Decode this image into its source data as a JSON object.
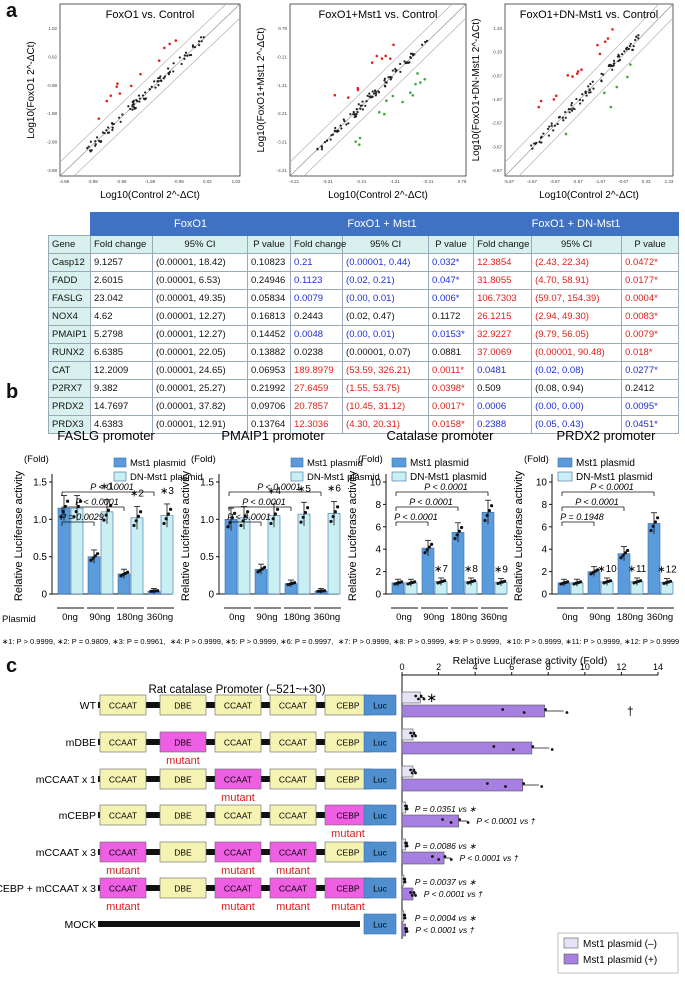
{
  "panel_labels": {
    "a": "a",
    "b": "b",
    "c": "c"
  },
  "scatter": [
    {
      "title": "FoxO1 vs. Control",
      "ylabel": "Log10(FoxO1 2^-ΔCt)",
      "xlabel": "Log10(Control 2^-ΔCt)",
      "xticks": [
        "-4.98",
        "-3.98",
        "-2.98",
        "-1.98",
        "-0.98",
        "0.02",
        "1.02"
      ],
      "yticks": [
        "1.02",
        "0.02",
        "-0.98",
        "-1.98",
        "-2.98",
        "-3.98"
      ]
    },
    {
      "title": "FoxO1+Mst1 vs. Control",
      "ylabel": "Log10(FoxO1+Mst1 2^-ΔCt)",
      "xlabel": "Log10(Control 2^-ΔCt)",
      "xticks": [
        "-4.21",
        "-3.21",
        "-2.21",
        "-1.21",
        "-0.21",
        "0.79"
      ],
      "yticks": [
        "0.79",
        "-0.21",
        "-1.21",
        "-2.21",
        "-3.21",
        "-4.21"
      ]
    },
    {
      "title": "FoxO1+DN-Mst1 vs. Control",
      "ylabel": "Log10(FoxO1+DN-Mst1 2^-ΔCt)",
      "xlabel": "Log10(Control 2^-ΔCt)",
      "xticks": [
        "-5.67",
        "-4.67",
        "-3.67",
        "-2.67",
        "-1.67",
        "-0.67",
        "0.33",
        "1.33"
      ],
      "yticks": [
        "1.33",
        "0.33",
        "-0.67",
        "-1.67",
        "-2.67",
        "-3.67",
        "-4.67"
      ]
    }
  ],
  "table": {
    "groups": [
      "FoxO1",
      "FoxO1 + Mst1",
      "FoxO1 + DN-Mst1"
    ],
    "headers": [
      "Gene",
      "Fold change",
      "95% CI",
      "P value",
      "Fold change",
      "95% CI",
      "P value",
      "Fold change",
      "95% CI",
      "P value"
    ],
    "rows": [
      [
        "Casp12",
        "9.1257",
        "(0.00001, 18.42)",
        "0.10823",
        "0.21",
        "(0.00001, 0.44)",
        "0.032*",
        "12.3854",
        "(2.43, 22.34)",
        "0.0472*"
      ],
      [
        "FADD",
        "2.6015",
        "(0.00001, 6.53)",
        "0.24946",
        "0.1123",
        "(0.02, 0.21)",
        "0.047*",
        "31.8055",
        "(4.70, 58.91)",
        "0.0177*"
      ],
      [
        "FASLG",
        "23.042",
        "(0.00001, 49.35)",
        "0.05834",
        "0.0079",
        "(0.00, 0.01)",
        "0.006*",
        "106.7303",
        "(59.07, 154.39)",
        "0.0004*"
      ],
      [
        "NOX4",
        "4.62",
        "(0.00001, 12.27)",
        "0.16813",
        "0.2443",
        "(0.02, 0.47)",
        "0.1172",
        "26.1215",
        "(2.94, 49.30)",
        "0.0083*"
      ],
      [
        "PMAIP1",
        "5.2798",
        "(0.00001, 12.27)",
        "0.14452",
        "0.0048",
        "(0.00, 0.01)",
        "0.0153*",
        "32.9227",
        "(9.79, 56.05)",
        "0.0079*"
      ],
      [
        "RUNX2",
        "6.6385",
        "(0.00001, 22.05)",
        "0.13882",
        "0.0238",
        "(0.00001, 0.07)",
        "0.0881",
        "37.0069",
        "(0.00001, 90.48)",
        "0.018*"
      ],
      [
        "CAT",
        "12.2009",
        "(0.00001, 24.65)",
        "0.06953",
        "189.8979",
        "(53.59, 326.21)",
        "0.0011*",
        "0.0481",
        "(0.02, 0.08)",
        "0.0277*"
      ],
      [
        "P2RX7",
        "9.382",
        "(0.00001, 25.27)",
        "0.21992",
        "27.6459",
        "(1.55, 53.75)",
        "0.0398*",
        "0.509",
        "(0.08, 0.94)",
        "0.2412"
      ],
      [
        "PRDX2",
        "14.7697",
        "(0.00001, 37.82)",
        "0.09706",
        "20.7857",
        "(10.45, 31.12)",
        "0.0017*",
        "0.0006",
        "(0.00, 0.00)",
        "0.0095*"
      ],
      [
        "PRDX3",
        "4.6383",
        "(0.00001, 12.91)",
        "0.13764",
        "12.3036",
        "(4.30, 20.31)",
        "0.0158*",
        "0.2388",
        "(0.05, 0.43)",
        "0.0451*"
      ]
    ]
  },
  "colors": {
    "mst1": "#5a9bdc",
    "dn": "#c9eff2",
    "neg": "#e4e4f6",
    "pos": "#a77fe0",
    "up": "#e0201a",
    "down": "#1f2fd6",
    "header": "#3f72c2"
  },
  "panel_b": {
    "ylabel": "Relative Luciferase activity",
    "fold": "(Fold)",
    "plasmid_label": "Plasmid",
    "doses": [
      "0ng",
      "90ng",
      "180ng",
      "360ng"
    ],
    "legend": [
      "Mst1 plasmid",
      "DN-Mst1 plasmid"
    ],
    "footnotes": [
      "∗1: P > 0.9999, ∗2: P = 0.9809, ∗3: P = 0.9961,",
      "∗4: P > 0.9999, ∗5: P > 0.9999, ∗6: P = 0.9997,",
      "∗7: P > 0.9999, ∗8: P > 0.9999, ∗9: P > 0.9999,",
      "∗10: P > 0.9999, ∗11: P > 0.9999, ∗12: P > 0.9999"
    ]
  },
  "chart_data": [
    {
      "type": "bar",
      "title": "FASLG promoter",
      "categories": [
        "0ng",
        "90ng",
        "180ng",
        "360ng"
      ],
      "ylim": [
        0,
        1.5
      ],
      "yticks": [
        "0",
        "0.5",
        "1.0",
        "1.5"
      ],
      "series": [
        {
          "name": "Mst1 plasmid",
          "values": [
            1.15,
            0.5,
            0.27,
            0.04
          ]
        },
        {
          "name": "DN-Mst1 plasmid",
          "values": [
            1.15,
            1.1,
            1.02,
            1.05
          ]
        }
      ],
      "stars": [
        "∗1",
        "∗2",
        "∗3"
      ],
      "pvals": [
        "P < 0.0001",
        "P < 0.0001",
        "P = 0.0029"
      ]
    },
    {
      "type": "bar",
      "title": "PMAIP1 promoter",
      "categories": [
        "0ng",
        "90ng",
        "180ng",
        "360ng"
      ],
      "ylim": [
        0,
        1.5
      ],
      "yticks": [
        "0",
        "0.5",
        "1.0",
        "1.5"
      ],
      "series": [
        {
          "name": "Mst1 plasmid",
          "values": [
            1.0,
            0.33,
            0.14,
            0.04
          ]
        },
        {
          "name": "DN-Mst1 plasmid",
          "values": [
            1.02,
            1.05,
            1.07,
            1.08
          ]
        }
      ],
      "stars": [
        "∗4",
        "∗5",
        "∗6"
      ],
      "pvals": [
        "P < 0.0001",
        "P < 0.0001",
        "P < 0.0001"
      ]
    },
    {
      "type": "bar",
      "title": "Catalase promoter",
      "categories": [
        "0ng",
        "90ng",
        "180ng",
        "360ng"
      ],
      "ylim": [
        0,
        10
      ],
      "yticks": [
        "0",
        "2",
        "4",
        "6",
        "8",
        "10"
      ],
      "series": [
        {
          "name": "Mst1 plasmid",
          "values": [
            1.0,
            4.1,
            5.5,
            7.3
          ]
        },
        {
          "name": "DN-Mst1 plasmid",
          "values": [
            1.0,
            1.1,
            1.1,
            1.05
          ]
        }
      ],
      "stars": [
        "∗7",
        "∗8",
        "∗9"
      ],
      "pvals": [
        "P < 0.0001",
        "P < 0.0001",
        "P < 0.0001"
      ]
    },
    {
      "type": "bar",
      "title": "PRDX2 promoter",
      "categories": [
        "0ng",
        "90ng",
        "180ng",
        "360ng"
      ],
      "ylim": [
        0,
        10
      ],
      "yticks": [
        "0",
        "2",
        "4",
        "6",
        "8",
        "10"
      ],
      "series": [
        {
          "name": "Mst1 plasmid",
          "values": [
            1.0,
            2.0,
            3.6,
            6.3
          ]
        },
        {
          "name": "DN-Mst1 plasmid",
          "values": [
            1.0,
            1.1,
            1.1,
            1.05
          ]
        }
      ],
      "stars": [
        "∗10",
        "∗11",
        "∗12"
      ],
      "pvals": [
        "P < 0.0001",
        "P < 0.0001",
        "P = 0.1948"
      ]
    },
    {
      "type": "bar",
      "title": "Relative Luciferase activity (Fold)",
      "orientation": "horizontal",
      "categories": [
        "WT",
        "mDBE",
        "mCCAAT x 1",
        "mCEBP",
        "mCCAAT x 3",
        "mCEBP + mCCAAT x 3",
        "MOCK"
      ],
      "xlim": [
        0,
        14
      ],
      "xticks": [
        "0",
        "2",
        "4",
        "6",
        "8",
        "10",
        "12",
        "14"
      ],
      "series": [
        {
          "name": "Mst1 plasmid (–)",
          "values": [
            1.0,
            0.6,
            0.6,
            0.2,
            0.2,
            0.1,
            0.1
          ]
        },
        {
          "name": "Mst1 plasmid (+)",
          "values": [
            7.8,
            7.1,
            6.6,
            3.1,
            2.3,
            0.6,
            0.2
          ]
        }
      ],
      "annotations": [
        "∗",
        "†",
        "P = 0.0351 vs ∗",
        "P < 0.0001 vs †",
        "P = 0.0086 vs ∗",
        "P < 0.0001 vs †",
        "P = 0.0037 vs ∗",
        "P < 0.0001 vs †",
        "P = 0.0004 vs ∗",
        "P < 0.0001 vs †"
      ]
    }
  ],
  "panel_c": {
    "title": "Rat catalase Promoter  (–521~+30)",
    "constructs": [
      {
        "label": "WT",
        "boxes": [
          "CCAAT",
          "DBE",
          "CCAAT",
          "CCAAT",
          "CEBP"
        ],
        "mut": [
          false,
          false,
          false,
          false,
          false
        ]
      },
      {
        "label": "mDBE",
        "boxes": [
          "CCAAT",
          "DBE",
          "CCAAT",
          "CCAAT",
          "CEBP"
        ],
        "mut": [
          false,
          true,
          false,
          false,
          false
        ]
      },
      {
        "label": "mCCAAT x 1",
        "boxes": [
          "CCAAT",
          "DBE",
          "CCAAT",
          "CCAAT",
          "CEBP"
        ],
        "mut": [
          false,
          false,
          true,
          false,
          false
        ]
      },
      {
        "label": "mCEBP",
        "boxes": [
          "CCAAT",
          "DBE",
          "CCAAT",
          "CCAAT",
          "CEBP"
        ],
        "mut": [
          false,
          false,
          false,
          false,
          true
        ]
      },
      {
        "label": "mCCAAT x 3",
        "boxes": [
          "CCAAT",
          "DBE",
          "CCAAT",
          "CCAAT",
          "CEBP"
        ],
        "mut": [
          true,
          false,
          true,
          true,
          false
        ]
      },
      {
        "label": "mCEBP + mCCAAT x 3",
        "boxes": [
          "CCAAT",
          "DBE",
          "CCAAT",
          "CCAAT",
          "CEBP"
        ],
        "mut": [
          true,
          false,
          true,
          true,
          true
        ]
      },
      {
        "label": "MOCK",
        "boxes": [],
        "mut": []
      }
    ],
    "luc": "Luc",
    "mutant": "mutant"
  }
}
